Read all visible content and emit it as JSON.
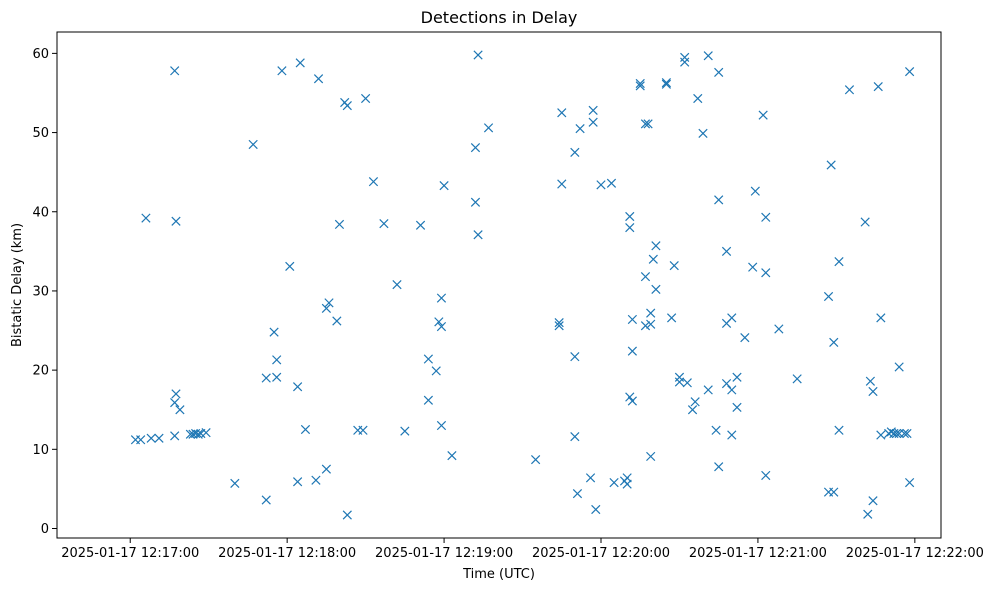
{
  "chart_data": {
    "type": "scatter",
    "title": "Detections in Delay",
    "xlabel": "Time (UTC)",
    "ylabel": "Bistatic Delay (km)",
    "x_ticks": [
      "2025-01-17 12:17:00",
      "2025-01-17 12:18:00",
      "2025-01-17 12:19:00",
      "2025-01-17 12:20:00",
      "2025-01-17 12:21:00",
      "2025-01-17 12:22:00"
    ],
    "x_tick_values": [
      0,
      60,
      120,
      180,
      240,
      300
    ],
    "x_unit": "seconds after 2025-01-17 12:17:00",
    "y_ticks": [
      0,
      10,
      20,
      30,
      40,
      50,
      60
    ],
    "xlim": [
      -28,
      310
    ],
    "ylim": [
      -1.2,
      62.7
    ],
    "grid": false,
    "legend": "none",
    "marker": "x",
    "color": "#1f77b4",
    "points": [
      [
        2,
        11.2
      ],
      [
        4,
        11.2
      ],
      [
        6,
        39.2
      ],
      [
        8,
        11.4
      ],
      [
        11,
        11.4
      ],
      [
        17,
        57.8
      ],
      [
        17,
        11.7
      ],
      [
        17,
        15.9
      ],
      [
        17.5,
        17
      ],
      [
        17.5,
        38.8
      ],
      [
        19,
        15
      ],
      [
        23,
        11.9
      ],
      [
        24,
        11.9
      ],
      [
        25,
        12
      ],
      [
        26,
        11.9
      ],
      [
        27,
        12
      ],
      [
        29,
        12.1
      ],
      [
        40,
        5.7
      ],
      [
        47,
        48.5
      ],
      [
        52,
        3.6
      ],
      [
        52,
        19
      ],
      [
        55,
        24.8
      ],
      [
        56,
        21.3
      ],
      [
        56,
        19.1
      ],
      [
        58,
        57.8
      ],
      [
        61,
        33.1
      ],
      [
        64,
        5.9
      ],
      [
        64,
        17.9
      ],
      [
        65,
        58.8
      ],
      [
        67,
        12.5
      ],
      [
        71,
        6.1
      ],
      [
        72,
        56.8
      ],
      [
        75,
        27.8
      ],
      [
        75,
        7.5
      ],
      [
        76,
        28.5
      ],
      [
        79,
        26.2
      ],
      [
        80,
        38.4
      ],
      [
        82,
        53.8
      ],
      [
        83,
        53.4
      ],
      [
        83,
        1.7
      ],
      [
        87,
        12.4
      ],
      [
        89,
        12.4
      ],
      [
        90,
        54.3
      ],
      [
        93,
        43.8
      ],
      [
        97,
        38.5
      ],
      [
        102,
        30.8
      ],
      [
        105,
        12.3
      ],
      [
        111,
        38.3
      ],
      [
        114,
        16.2
      ],
      [
        114,
        21.4
      ],
      [
        117,
        19.9
      ],
      [
        118,
        26.1
      ],
      [
        119,
        25.5
      ],
      [
        119,
        29.1
      ],
      [
        119,
        13
      ],
      [
        120,
        43.3
      ],
      [
        123,
        9.2
      ],
      [
        132,
        48.1
      ],
      [
        132,
        41.2
      ],
      [
        133,
        59.8
      ],
      [
        133,
        37.1
      ],
      [
        137,
        50.6
      ],
      [
        155,
        8.7
      ],
      [
        164,
        26
      ],
      [
        164,
        25.6
      ],
      [
        165,
        52.5
      ],
      [
        165,
        43.5
      ],
      [
        170,
        47.5
      ],
      [
        170,
        21.7
      ],
      [
        170,
        11.6
      ],
      [
        171,
        4.4
      ],
      [
        172,
        50.5
      ],
      [
        176,
        6.4
      ],
      [
        177,
        52.8
      ],
      [
        177,
        51.3
      ],
      [
        178,
        2.4
      ],
      [
        180,
        43.4
      ],
      [
        184,
        43.6
      ],
      [
        185,
        5.8
      ],
      [
        189,
        6
      ],
      [
        190,
        5.6
      ],
      [
        190,
        6.4
      ],
      [
        191,
        38
      ],
      [
        191,
        39.4
      ],
      [
        191,
        16.6
      ],
      [
        192,
        16.1
      ],
      [
        192,
        26.4
      ],
      [
        192,
        22.4
      ],
      [
        195,
        56.2
      ],
      [
        195,
        55.9
      ],
      [
        197,
        31.8
      ],
      [
        197,
        25.6
      ],
      [
        197,
        51.1
      ],
      [
        198,
        51.1
      ],
      [
        199,
        25.8
      ],
      [
        199,
        27.2
      ],
      [
        199,
        9.1
      ],
      [
        200,
        34
      ],
      [
        201,
        30.2
      ],
      [
        201,
        35.7
      ],
      [
        205,
        56.3
      ],
      [
        205,
        56.1
      ],
      [
        207,
        26.6
      ],
      [
        208,
        33.2
      ],
      [
        210,
        19.1
      ],
      [
        210,
        18.5
      ],
      [
        212,
        59.5
      ],
      [
        212,
        58.9
      ],
      [
        213,
        18.4
      ],
      [
        215,
        15
      ],
      [
        216,
        16
      ],
      [
        217,
        54.3
      ],
      [
        219,
        49.9
      ],
      [
        221,
        17.5
      ],
      [
        221,
        59.7
      ],
      [
        224,
        12.4
      ],
      [
        225,
        57.6
      ],
      [
        225,
        41.5
      ],
      [
        225,
        7.8
      ],
      [
        228,
        35
      ],
      [
        228,
        25.9
      ],
      [
        228,
        18.3
      ],
      [
        230,
        26.6
      ],
      [
        230,
        17.5
      ],
      [
        230,
        11.8
      ],
      [
        232,
        19.1
      ],
      [
        232,
        15.3
      ],
      [
        235,
        24.1
      ],
      [
        238,
        33
      ],
      [
        239,
        42.6
      ],
      [
        242,
        52.2
      ],
      [
        243,
        39.3
      ],
      [
        243,
        32.3
      ],
      [
        243,
        6.7
      ],
      [
        248,
        25.2
      ],
      [
        255,
        18.9
      ],
      [
        267,
        29.3
      ],
      [
        267,
        4.6
      ],
      [
        268,
        45.9
      ],
      [
        269,
        23.5
      ],
      [
        269,
        4.6
      ],
      [
        271,
        12.4
      ],
      [
        271,
        33.7
      ],
      [
        275,
        55.4
      ],
      [
        281,
        38.7
      ],
      [
        282,
        1.8
      ],
      [
        283,
        18.6
      ],
      [
        284,
        17.3
      ],
      [
        284,
        3.5
      ],
      [
        286,
        55.8
      ],
      [
        287,
        11.8
      ],
      [
        287,
        26.6
      ],
      [
        290,
        12
      ],
      [
        291,
        12.2
      ],
      [
        292,
        12
      ],
      [
        293,
        12
      ],
      [
        294,
        20.4
      ],
      [
        294,
        12
      ],
      [
        296,
        12
      ],
      [
        297,
        12
      ],
      [
        298,
        57.7
      ],
      [
        298,
        5.8
      ]
    ]
  }
}
